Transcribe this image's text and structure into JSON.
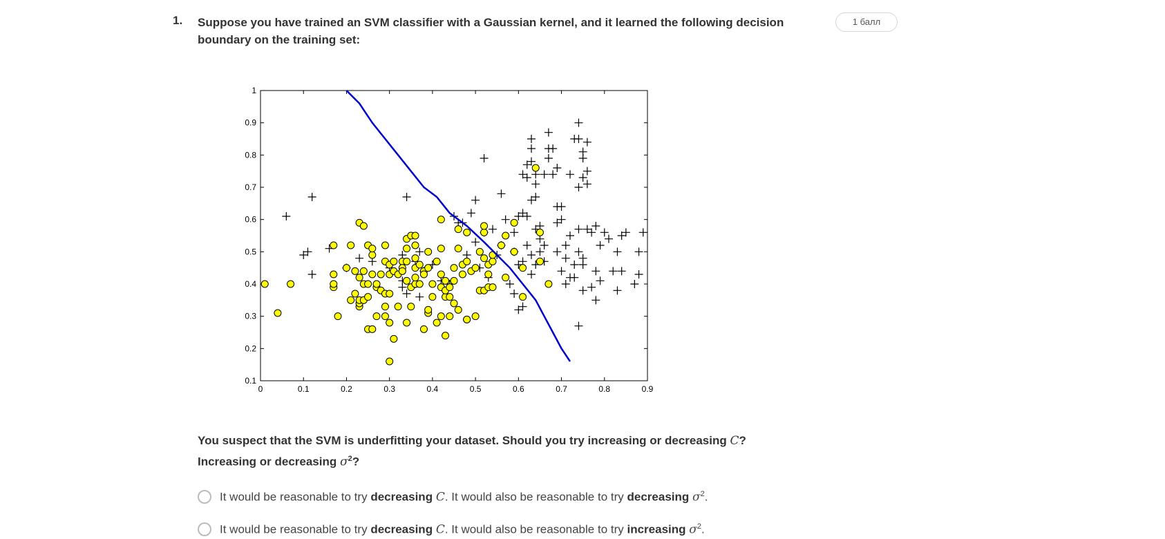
{
  "question": {
    "number": "1.",
    "text": "Suppose you have trained an SVM classifier with a Gaussian kernel, and it learned the following decision boundary on the training set:",
    "points": "1 балл",
    "prompt_part1": "You suspect that the SVM is underfitting your dataset. Should you try increasing or decreasing",
    "prompt_C": "C",
    "prompt_q1": "?",
    "prompt_part2": "Increasing or decreasing",
    "prompt_sigma": "σ",
    "prompt_exp": "2",
    "prompt_q2": "?"
  },
  "options": [
    {
      "pre": "It would be reasonable to try",
      "bold1": "decreasing",
      "var1": "C",
      "mid": ". It would also be reasonable to try",
      "bold2": "decreasing",
      "var2": "σ",
      "exp": "2",
      "end": "."
    },
    {
      "pre": "It would be reasonable to try",
      "bold1": "decreasing",
      "var1": "C",
      "mid": ". It would also be reasonable to try",
      "bold2": "increasing",
      "var2": "σ",
      "exp": "2",
      "end": "."
    }
  ],
  "chart_data": {
    "type": "scatter",
    "xlim": [
      0,
      0.9
    ],
    "ylim": [
      0.1,
      1
    ],
    "xticks": [
      "0",
      "0.1",
      "0.2",
      "0.3",
      "0.4",
      "0.5",
      "0.6",
      "0.7",
      "0.8",
      "0.9"
    ],
    "yticks": [
      "0.1",
      "0.2",
      "0.3",
      "0.4",
      "0.5",
      "0.6",
      "0.7",
      "0.8",
      "0.9",
      "1"
    ],
    "series": [
      {
        "marker": "plus",
        "color": "#000000",
        "points": [
          [
            0.06,
            0.61
          ],
          [
            0.12,
            0.67
          ],
          [
            0.34,
            0.67
          ],
          [
            0.1,
            0.49
          ],
          [
            0.11,
            0.5
          ],
          [
            0.12,
            0.43
          ],
          [
            0.16,
            0.51
          ],
          [
            0.2,
            0.45
          ],
          [
            0.23,
            0.48
          ],
          [
            0.26,
            0.47
          ],
          [
            0.3,
            0.45
          ],
          [
            0.33,
            0.49
          ],
          [
            0.33,
            0.39
          ],
          [
            0.36,
            0.47
          ],
          [
            0.36,
            0.4
          ],
          [
            0.37,
            0.36
          ],
          [
            0.33,
            0.41
          ],
          [
            0.34,
            0.37
          ],
          [
            0.37,
            0.5
          ],
          [
            0.38,
            0.44
          ],
          [
            0.4,
            0.46
          ],
          [
            0.42,
            0.41
          ],
          [
            0.44,
            0.4
          ],
          [
            0.45,
            0.61
          ],
          [
            0.46,
            0.59
          ],
          [
            0.47,
            0.59
          ],
          [
            0.49,
            0.62
          ],
          [
            0.5,
            0.53
          ],
          [
            0.52,
            0.56
          ],
          [
            0.48,
            0.49
          ],
          [
            0.51,
            0.45
          ],
          [
            0.52,
            0.79
          ],
          [
            0.54,
            0.57
          ],
          [
            0.5,
            0.66
          ],
          [
            0.55,
            0.49
          ],
          [
            0.53,
            0.42
          ],
          [
            0.56,
            0.52
          ],
          [
            0.56,
            0.68
          ],
          [
            0.57,
            0.6
          ],
          [
            0.58,
            0.4
          ],
          [
            0.59,
            0.37
          ],
          [
            0.59,
            0.5
          ],
          [
            0.59,
            0.56
          ],
          [
            0.6,
            0.61
          ],
          [
            0.61,
            0.62
          ],
          [
            0.62,
            0.61
          ],
          [
            0.6,
            0.46
          ],
          [
            0.61,
            0.47
          ],
          [
            0.62,
            0.52
          ],
          [
            0.63,
            0.49
          ],
          [
            0.63,
            0.43
          ],
          [
            0.64,
            0.46
          ],
          [
            0.6,
            0.32
          ],
          [
            0.61,
            0.33
          ],
          [
            0.61,
            0.74
          ],
          [
            0.62,
            0.73
          ],
          [
            0.62,
            0.77
          ],
          [
            0.63,
            0.78
          ],
          [
            0.63,
            0.82
          ],
          [
            0.63,
            0.85
          ],
          [
            0.63,
            0.66
          ],
          [
            0.64,
            0.67
          ],
          [
            0.64,
            0.74
          ],
          [
            0.64,
            0.71
          ],
          [
            0.64,
            0.57
          ],
          [
            0.65,
            0.58
          ],
          [
            0.65,
            0.54
          ],
          [
            0.65,
            0.5
          ],
          [
            0.66,
            0.52
          ],
          [
            0.66,
            0.47
          ],
          [
            0.66,
            0.74
          ],
          [
            0.67,
            0.79
          ],
          [
            0.67,
            0.82
          ],
          [
            0.67,
            0.87
          ],
          [
            0.68,
            0.74
          ],
          [
            0.68,
            0.82
          ],
          [
            0.69,
            0.76
          ],
          [
            0.69,
            0.64
          ],
          [
            0.69,
            0.59
          ],
          [
            0.69,
            0.5
          ],
          [
            0.7,
            0.6
          ],
          [
            0.7,
            0.64
          ],
          [
            0.7,
            0.44
          ],
          [
            0.71,
            0.48
          ],
          [
            0.71,
            0.52
          ],
          [
            0.71,
            0.4
          ],
          [
            0.72,
            0.42
          ],
          [
            0.72,
            0.55
          ],
          [
            0.72,
            0.74
          ],
          [
            0.73,
            0.42
          ],
          [
            0.73,
            0.46
          ],
          [
            0.73,
            0.85
          ],
          [
            0.74,
            0.85
          ],
          [
            0.74,
            0.7
          ],
          [
            0.74,
            0.57
          ],
          [
            0.74,
            0.9
          ],
          [
            0.75,
            0.46
          ],
          [
            0.75,
            0.48
          ],
          [
            0.74,
            0.5
          ],
          [
            0.75,
            0.79
          ],
          [
            0.75,
            0.81
          ],
          [
            0.75,
            0.73
          ],
          [
            0.75,
            0.38
          ],
          [
            0.76,
            0.84
          ],
          [
            0.76,
            0.75
          ],
          [
            0.76,
            0.71
          ],
          [
            0.76,
            0.57
          ],
          [
            0.77,
            0.39
          ],
          [
            0.77,
            0.56
          ],
          [
            0.78,
            0.58
          ],
          [
            0.78,
            0.44
          ],
          [
            0.79,
            0.52
          ],
          [
            0.79,
            0.41
          ],
          [
            0.78,
            0.35
          ],
          [
            0.8,
            0.56
          ],
          [
            0.81,
            0.54
          ],
          [
            0.82,
            0.44
          ],
          [
            0.84,
            0.44
          ],
          [
            0.83,
            0.5
          ],
          [
            0.84,
            0.55
          ],
          [
            0.85,
            0.56
          ],
          [
            0.87,
            0.4
          ],
          [
            0.88,
            0.43
          ],
          [
            0.88,
            0.5
          ],
          [
            0.89,
            0.56
          ],
          [
            0.83,
            0.38
          ],
          [
            0.74,
            0.27
          ]
        ]
      },
      {
        "marker": "circle",
        "color": "#ffff00",
        "points": [
          [
            0.01,
            0.4
          ],
          [
            0.04,
            0.31
          ],
          [
            0.07,
            0.4
          ],
          [
            0.17,
            0.43
          ],
          [
            0.17,
            0.39
          ],
          [
            0.17,
            0.4
          ],
          [
            0.17,
            0.52
          ],
          [
            0.18,
            0.3
          ],
          [
            0.2,
            0.45
          ],
          [
            0.21,
            0.52
          ],
          [
            0.21,
            0.35
          ],
          [
            0.22,
            0.44
          ],
          [
            0.22,
            0.37
          ],
          [
            0.23,
            0.42
          ],
          [
            0.23,
            0.33
          ],
          [
            0.23,
            0.34
          ],
          [
            0.23,
            0.35
          ],
          [
            0.23,
            0.59
          ],
          [
            0.24,
            0.58
          ],
          [
            0.24,
            0.44
          ],
          [
            0.24,
            0.35
          ],
          [
            0.24,
            0.4
          ],
          [
            0.25,
            0.52
          ],
          [
            0.25,
            0.36
          ],
          [
            0.25,
            0.4
          ],
          [
            0.25,
            0.26
          ],
          [
            0.26,
            0.49
          ],
          [
            0.26,
            0.51
          ],
          [
            0.26,
            0.43
          ],
          [
            0.26,
            0.26
          ],
          [
            0.27,
            0.39
          ],
          [
            0.27,
            0.4
          ],
          [
            0.27,
            0.3
          ],
          [
            0.28,
            0.43
          ],
          [
            0.28,
            0.38
          ],
          [
            0.29,
            0.37
          ],
          [
            0.29,
            0.33
          ],
          [
            0.29,
            0.3
          ],
          [
            0.29,
            0.52
          ],
          [
            0.29,
            0.47
          ],
          [
            0.3,
            0.28
          ],
          [
            0.3,
            0.37
          ],
          [
            0.3,
            0.43
          ],
          [
            0.3,
            0.46
          ],
          [
            0.3,
            0.16
          ],
          [
            0.31,
            0.23
          ],
          [
            0.31,
            0.44
          ],
          [
            0.31,
            0.47
          ],
          [
            0.32,
            0.43
          ],
          [
            0.32,
            0.33
          ],
          [
            0.33,
            0.47
          ],
          [
            0.33,
            0.45
          ],
          [
            0.33,
            0.44
          ],
          [
            0.34,
            0.41
          ],
          [
            0.34,
            0.47
          ],
          [
            0.34,
            0.28
          ],
          [
            0.34,
            0.51
          ],
          [
            0.34,
            0.54
          ],
          [
            0.35,
            0.55
          ],
          [
            0.35,
            0.33
          ],
          [
            0.35,
            0.39
          ],
          [
            0.36,
            0.4
          ],
          [
            0.36,
            0.42
          ],
          [
            0.36,
            0.45
          ],
          [
            0.36,
            0.52
          ],
          [
            0.36,
            0.55
          ],
          [
            0.36,
            0.48
          ],
          [
            0.37,
            0.46
          ],
          [
            0.37,
            0.4
          ],
          [
            0.38,
            0.44
          ],
          [
            0.38,
            0.26
          ],
          [
            0.38,
            0.43
          ],
          [
            0.39,
            0.31
          ],
          [
            0.39,
            0.32
          ],
          [
            0.39,
            0.5
          ],
          [
            0.39,
            0.45
          ],
          [
            0.4,
            0.4
          ],
          [
            0.4,
            0.36
          ],
          [
            0.41,
            0.28
          ],
          [
            0.41,
            0.47
          ],
          [
            0.42,
            0.43
          ],
          [
            0.42,
            0.39
          ],
          [
            0.42,
            0.51
          ],
          [
            0.42,
            0.6
          ],
          [
            0.42,
            0.3
          ],
          [
            0.43,
            0.24
          ],
          [
            0.43,
            0.36
          ],
          [
            0.43,
            0.38
          ],
          [
            0.43,
            0.41
          ],
          [
            0.44,
            0.36
          ],
          [
            0.44,
            0.39
          ],
          [
            0.44,
            0.3
          ],
          [
            0.45,
            0.34
          ],
          [
            0.45,
            0.41
          ],
          [
            0.45,
            0.45
          ],
          [
            0.46,
            0.51
          ],
          [
            0.46,
            0.57
          ],
          [
            0.46,
            0.32
          ],
          [
            0.47,
            0.43
          ],
          [
            0.47,
            0.46
          ],
          [
            0.48,
            0.29
          ],
          [
            0.48,
            0.29
          ],
          [
            0.48,
            0.47
          ],
          [
            0.49,
            0.44
          ],
          [
            0.5,
            0.3
          ],
          [
            0.5,
            0.45
          ],
          [
            0.51,
            0.38
          ],
          [
            0.51,
            0.5
          ],
          [
            0.52,
            0.48
          ],
          [
            0.52,
            0.56
          ],
          [
            0.52,
            0.58
          ],
          [
            0.52,
            0.38
          ],
          [
            0.53,
            0.39
          ],
          [
            0.53,
            0.46
          ],
          [
            0.53,
            0.43
          ],
          [
            0.54,
            0.39
          ],
          [
            0.54,
            0.47
          ],
          [
            0.54,
            0.49
          ],
          [
            0.56,
            0.52
          ],
          [
            0.57,
            0.55
          ],
          [
            0.57,
            0.42
          ],
          [
            0.59,
            0.5
          ],
          [
            0.61,
            0.45
          ],
          [
            0.61,
            0.36
          ],
          [
            0.64,
            0.76
          ],
          [
            0.65,
            0.47
          ],
          [
            0.65,
            0.56
          ],
          [
            0.67,
            0.4
          ],
          [
            0.59,
            0.59
          ],
          [
            0.48,
            0.56
          ]
        ]
      }
    ],
    "decision_boundary": [
      [
        0.2,
        1.0
      ],
      [
        0.23,
        0.96
      ],
      [
        0.26,
        0.9
      ],
      [
        0.29,
        0.85
      ],
      [
        0.32,
        0.8
      ],
      [
        0.35,
        0.75
      ],
      [
        0.38,
        0.7
      ],
      [
        0.41,
        0.67
      ],
      [
        0.44,
        0.62
      ],
      [
        0.48,
        0.58
      ],
      [
        0.52,
        0.53
      ],
      [
        0.55,
        0.49
      ],
      [
        0.58,
        0.45
      ],
      [
        0.61,
        0.4
      ],
      [
        0.64,
        0.35
      ],
      [
        0.66,
        0.3
      ],
      [
        0.68,
        0.25
      ],
      [
        0.7,
        0.2
      ],
      [
        0.72,
        0.16
      ]
    ],
    "boundary_color": "#0000cc"
  }
}
